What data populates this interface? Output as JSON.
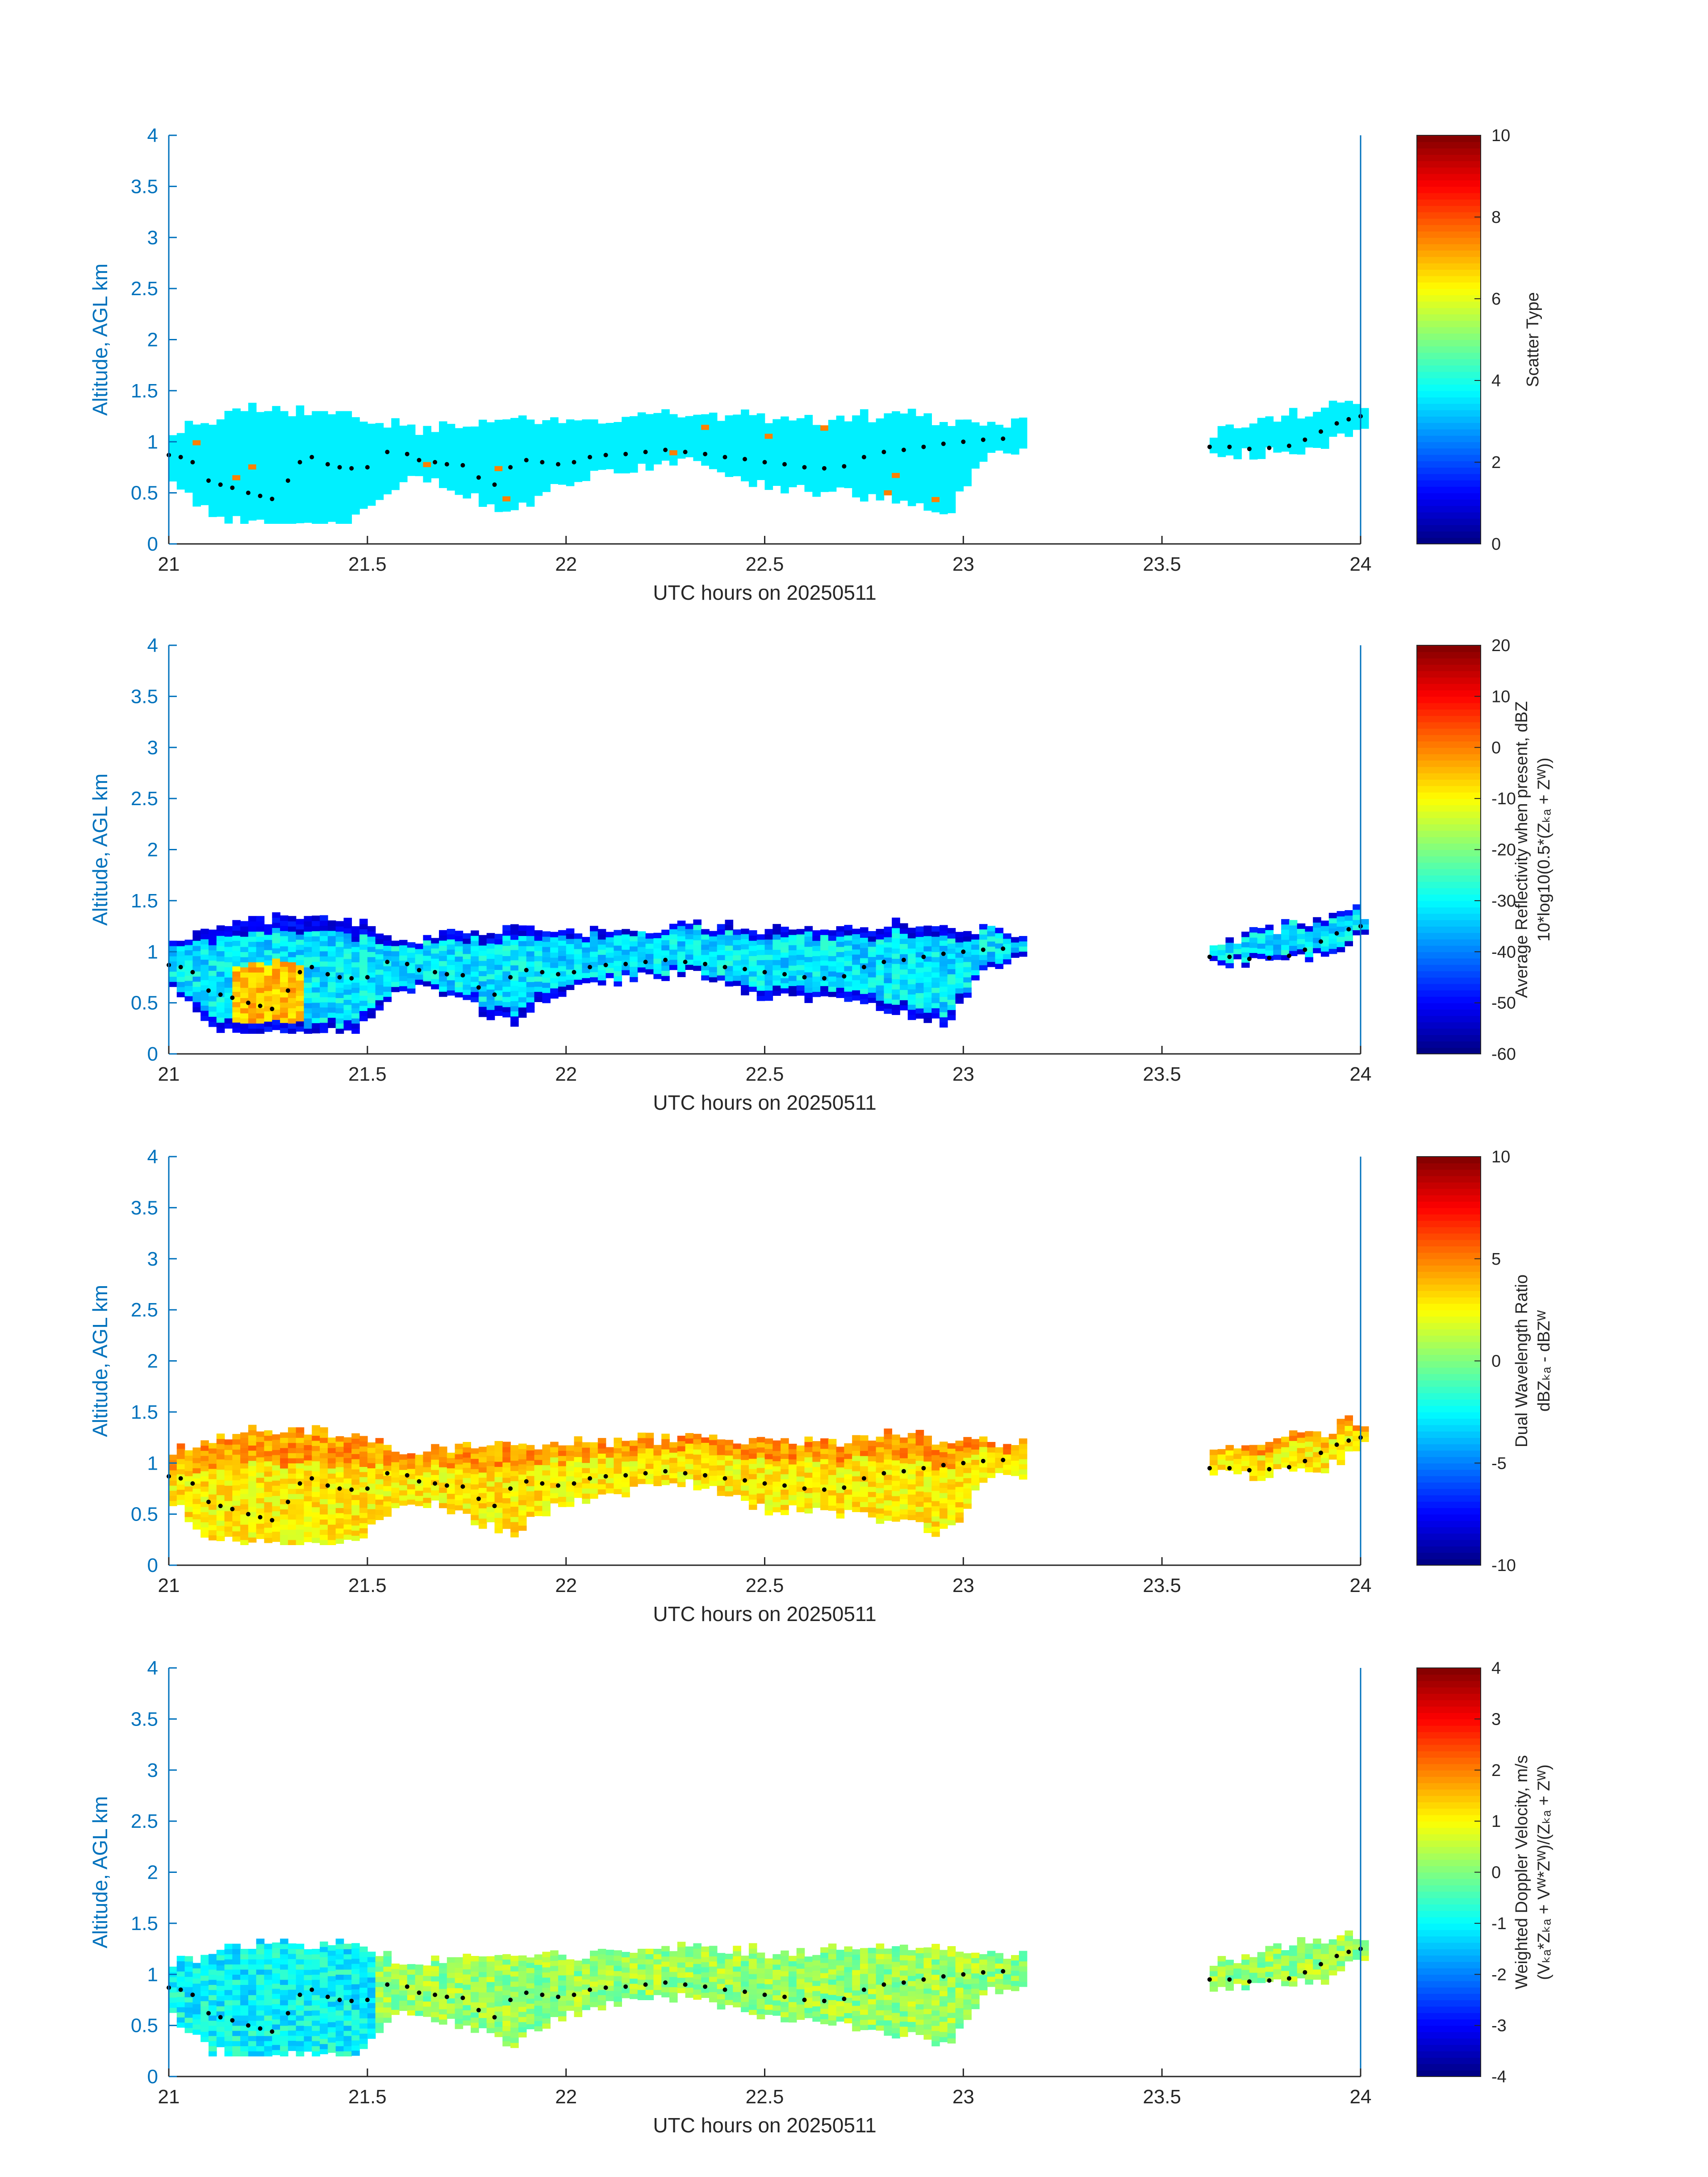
{
  "chart_data": [
    {
      "type": "heatmap",
      "x_label": "UTC hours on 20250511",
      "y_label": "Altitude, AGL km",
      "x_ticks": [
        "21",
        "21.5",
        "22",
        "22.5",
        "23",
        "23.5",
        "24"
      ],
      "y_ticks": [
        "0",
        "0.5",
        "1",
        "1.5",
        "2",
        "2.5",
        "3",
        "3.5",
        "4"
      ],
      "xlim": [
        21,
        24
      ],
      "ylim": [
        0,
        4
      ],
      "colorbar": {
        "label_lines": [
          "Scatter Type"
        ],
        "range": [
          0,
          10
        ],
        "ticks": [
          "0",
          "2",
          "4",
          "6",
          "8",
          "10"
        ],
        "colormap": "jet"
      },
      "dominant_value": 3.6,
      "speckle_values": [
        7.5
      ]
    },
    {
      "type": "heatmap",
      "x_label": "UTC hours on 20250511",
      "y_label": "Altitude, AGL km",
      "x_ticks": [
        "21",
        "21.5",
        "22",
        "22.5",
        "23",
        "23.5",
        "24"
      ],
      "y_ticks": [
        "0",
        "0.5",
        "1",
        "1.5",
        "2",
        "2.5",
        "3",
        "3.5",
        "4"
      ],
      "xlim": [
        21,
        24
      ],
      "ylim": [
        0,
        4
      ],
      "colorbar": {
        "label_lines": [
          "Average Reflectivity when present, dBZ",
          "10*log10(0.5*(Zₖₐ + Zᵂ))"
        ],
        "range": [
          -60,
          20
        ],
        "ticks": [
          "-60",
          "-50",
          "-40",
          "-30",
          "-20",
          "-10",
          "0",
          "10",
          "20"
        ],
        "colormap": "jet"
      },
      "dominant_value": -32,
      "edge_value": -55,
      "core_value": -5
    },
    {
      "type": "heatmap",
      "x_label": "UTC hours on 20250511",
      "y_label": "Altitude, AGL km",
      "x_ticks": [
        "21",
        "21.5",
        "22",
        "22.5",
        "23",
        "23.5",
        "24"
      ],
      "y_ticks": [
        "0",
        "0.5",
        "1",
        "1.5",
        "2",
        "2.5",
        "3",
        "3.5",
        "4"
      ],
      "xlim": [
        21,
        24
      ],
      "ylim": [
        0,
        4
      ],
      "colorbar": {
        "label_lines": [
          "Dual Wavelength Ratio",
          "dBZₖₐ - dBZᵂ"
        ],
        "range": [
          -10,
          10
        ],
        "ticks": [
          "-10",
          "-5",
          "0",
          "5",
          "10"
        ],
        "colormap": "jet"
      },
      "dominant_value": 2.8,
      "top_value": 4.5
    },
    {
      "type": "heatmap",
      "x_label": "UTC hours on 20250511",
      "y_label": "Altitude, AGL km",
      "x_ticks": [
        "21",
        "21.5",
        "22",
        "22.5",
        "23",
        "23.5",
        "24"
      ],
      "y_ticks": [
        "0",
        "0.5",
        "1",
        "1.5",
        "2",
        "2.5",
        "3",
        "3.5",
        "4"
      ],
      "xlim": [
        21,
        24
      ],
      "ylim": [
        0,
        4
      ],
      "colorbar": {
        "label_lines": [
          "Weighted Doppler Velocity, m/s",
          "(Vₖₐ*Zₖₐ + Vᵂ*Zᵂ)/(Zₖₐ + Zᵂ)"
        ],
        "range": [
          -4,
          4
        ],
        "ticks": [
          "-4",
          "-3",
          "-2",
          "-1",
          "0",
          "1",
          "2",
          "3",
          "4"
        ],
        "colormap": "jet"
      },
      "dominant_value": 0.2,
      "low_value": -1.0
    }
  ],
  "cloud_envelope": {
    "description_units": "km AGL per UTC hour",
    "segments": [
      {
        "x": [
          21.0,
          21.05,
          21.1,
          21.2,
          21.3,
          21.45,
          21.55,
          21.6,
          21.7,
          21.85,
          21.95,
          22.1,
          22.3,
          22.5,
          22.7,
          22.85,
          22.95,
          23.05,
          23.15
        ],
        "top": [
          1.1,
          1.15,
          1.2,
          1.3,
          1.3,
          1.25,
          1.15,
          1.1,
          1.15,
          1.2,
          1.15,
          1.2,
          1.25,
          1.2,
          1.2,
          1.25,
          1.2,
          1.2,
          1.15
        ],
        "base": [
          0.6,
          0.45,
          0.25,
          0.2,
          0.2,
          0.2,
          0.55,
          0.65,
          0.55,
          0.3,
          0.55,
          0.7,
          0.8,
          0.55,
          0.5,
          0.4,
          0.3,
          0.85,
          0.9
        ]
      },
      {
        "x": [
          23.62,
          23.7,
          23.8,
          23.9,
          23.97,
          24.0
        ],
        "top": [
          1.05,
          1.15,
          1.25,
          1.3,
          1.4,
          1.35
        ],
        "base": [
          0.88,
          0.88,
          0.9,
          0.95,
          1.1,
          1.15
        ]
      }
    ]
  },
  "cloud_base_markers": {
    "x": [
      21.0,
      21.03,
      21.06,
      21.1,
      21.13,
      21.16,
      21.2,
      21.23,
      21.26,
      21.3,
      21.33,
      21.36,
      21.4,
      21.43,
      21.46,
      21.5,
      21.55,
      21.6,
      21.63,
      21.67,
      21.7,
      21.74,
      21.78,
      21.82,
      21.86,
      21.9,
      21.94,
      21.98,
      22.02,
      22.06,
      22.1,
      22.15,
      22.2,
      22.25,
      22.3,
      22.35,
      22.4,
      22.45,
      22.5,
      22.55,
      22.6,
      22.65,
      22.7,
      22.75,
      22.8,
      22.85,
      22.9,
      22.95,
      23.0,
      23.05,
      23.1,
      23.62,
      23.67,
      23.72,
      23.77,
      23.82,
      23.86,
      23.9,
      23.94,
      23.97,
      24.0
    ],
    "y": [
      0.87,
      0.85,
      0.8,
      0.62,
      0.58,
      0.55,
      0.5,
      0.47,
      0.44,
      0.62,
      0.8,
      0.85,
      0.78,
      0.75,
      0.74,
      0.75,
      0.9,
      0.88,
      0.82,
      0.8,
      0.78,
      0.77,
      0.65,
      0.58,
      0.75,
      0.82,
      0.8,
      0.78,
      0.8,
      0.85,
      0.87,
      0.88,
      0.9,
      0.92,
      0.9,
      0.88,
      0.85,
      0.83,
      0.8,
      0.78,
      0.75,
      0.74,
      0.76,
      0.85,
      0.9,
      0.92,
      0.95,
      0.98,
      1.0,
      1.02,
      1.03,
      0.95,
      0.95,
      0.93,
      0.94,
      0.96,
      1.02,
      1.1,
      1.18,
      1.22,
      1.25
    ]
  },
  "colors": {
    "axis_blue": "#0072bd",
    "marker": "#000000",
    "text_dark": "#262626"
  }
}
